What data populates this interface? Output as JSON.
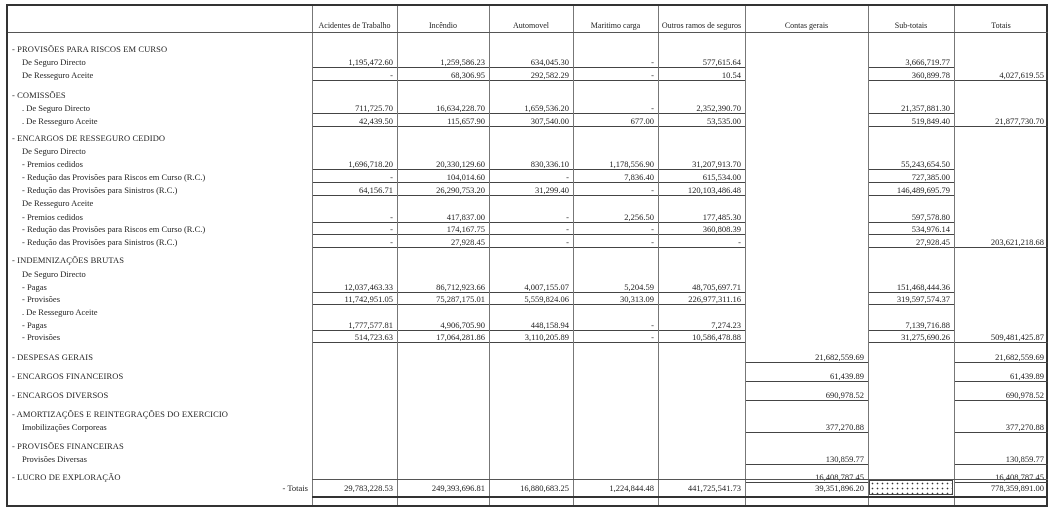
{
  "columns": [
    "Acidentes de Trabalho",
    "Incêndio",
    "Automovel",
    "Maritimo carga",
    "Outros ramos de seguros",
    "Contas gerais",
    "Sub-totais",
    "Totais"
  ],
  "rows": [
    {
      "label": "- PROVISÕES PARA RISCOS EM CURSO",
      "section": true
    },
    {
      "label": "De Seguro Directo",
      "values": [
        "1,195,472.60",
        "1,259,586.23",
        "634,045.30",
        "-",
        "577,615.64",
        null,
        "3,666,719.77",
        null
      ]
    },
    {
      "label": "De Resseguro Aceite",
      "values": [
        "-",
        "68,306.95",
        "292,582.29",
        "-",
        "10.54",
        null,
        "360,899.78",
        "4,027,619.55"
      ]
    },
    {
      "label": "- COMISSÕES",
      "section": true
    },
    {
      "label": ". De Seguro Directo",
      "values": [
        "711,725.70",
        "16,634,228.70",
        "1,659,536.20",
        "-",
        "2,352,390.70",
        null,
        "21,357,881.30",
        null
      ]
    },
    {
      "label": ". De Resseguro Aceite",
      "values": [
        "42,439.50",
        "115,657.90",
        "307,540.00",
        "677.00",
        "53,535.00",
        null,
        "519,849.40",
        "21,877,730.70"
      ]
    },
    {
      "label": "- ENCARGOS DE RESSEGURO CEDIDO",
      "section": true
    },
    {
      "label": "De Seguro Directo",
      "sub": true
    },
    {
      "label": "- Premios cedidos",
      "values": [
        "1,696,718.20",
        "20,330,129.60",
        "830,336.10",
        "1,178,556.90",
        "31,207,913.70",
        null,
        "55,243,654.50",
        null
      ]
    },
    {
      "label": "- Redução das Provisões para Riscos em Curso (R.C.)",
      "values": [
        "-",
        "104,014.60",
        "-",
        "7,836.40",
        "615,534.00",
        null,
        "727,385.00",
        null
      ]
    },
    {
      "label": "- Redução das Provisões para Sinistros (R.C.)",
      "values": [
        "64,156.71",
        "26,290,753.20",
        "31,299.40",
        "-",
        "120,103,486.48",
        null,
        "146,489,695.79",
        null
      ]
    },
    {
      "label": "De Resseguro Aceite",
      "sub": true
    },
    {
      "label": "- Premios cedidos",
      "values": [
        "-",
        "417,837.00",
        "-",
        "2,256.50",
        "177,485.30",
        null,
        "597,578.80",
        null
      ]
    },
    {
      "label": "- Redução das Provisões para Riscos em Curso (R.C.)",
      "values": [
        "-",
        "174,167.75",
        "-",
        "-",
        "360,808.39",
        null,
        "534,976.14",
        null
      ]
    },
    {
      "label": "- Redução das Provisões para Sinistros (R.C.)",
      "values": [
        "-",
        "27,928.45",
        "-",
        "-",
        "-",
        null,
        "27,928.45",
        "203,621,218.68"
      ]
    },
    {
      "label": "- INDEMNIZAÇÕES BRUTAS",
      "section": true
    },
    {
      "label": "De Seguro Directo",
      "sub": true
    },
    {
      "label": "- Pagas",
      "values": [
        "12,037,463.33",
        "86,712,923.66",
        "4,007,155.07",
        "5,204.59",
        "48,705,697.71",
        null,
        "151,468,444.36",
        null
      ]
    },
    {
      "label": "- Provisões",
      "values": [
        "11,742,951.05",
        "75,287,175.01",
        "5,559,824.06",
        "30,313.09",
        "226,977,311.16",
        null,
        "319,597,574.37",
        null
      ]
    },
    {
      "label": ". De Resseguro Aceite",
      "sub": true
    },
    {
      "label": "- Pagas",
      "values": [
        "1,777,577.81",
        "4,906,705.90",
        "448,158.94",
        "-",
        "7,274.23",
        null,
        "7,139,716.88",
        null
      ]
    },
    {
      "label": "- Provisões",
      "values": [
        "514,723.63",
        "17,064,281.86",
        "3,110,205.89",
        "-",
        "10,586,478.88",
        null,
        "31,275,690.26",
        "509,481,425.87"
      ]
    },
    {
      "label": "- DESPESAS GERAIS",
      "section": true,
      "values": [
        null,
        null,
        null,
        null,
        null,
        "21,682,559.69",
        null,
        "21,682,559.69"
      ]
    },
    {
      "label": "- ENCARGOS FINANCEIROS",
      "section": true,
      "values": [
        null,
        null,
        null,
        null,
        null,
        "61,439.89",
        null,
        "61,439.89"
      ]
    },
    {
      "label": "- ENCARGOS DIVERSOS",
      "section": true,
      "values": [
        null,
        null,
        null,
        null,
        null,
        "690,978.52",
        null,
        "690,978.52"
      ]
    },
    {
      "label": "- AMORTIZAÇÕES E REINTEGRAÇÕES DO EXERCICIO",
      "section": true
    },
    {
      "label": "Imobilizações Corporeas",
      "values": [
        null,
        null,
        null,
        null,
        null,
        "377,270.88",
        null,
        "377,270.88"
      ]
    },
    {
      "label": "- PROVISÕES FINANCEIRAS",
      "section": true
    },
    {
      "label": "Provisões Diversas",
      "values": [
        null,
        null,
        null,
        null,
        null,
        "130,859.77",
        null,
        "130,859.77"
      ]
    },
    {
      "label": "- LUCRO DE EXPLORAÇÃO",
      "section": true,
      "values": [
        null,
        null,
        null,
        null,
        null,
        "16,408,787.45",
        null,
        "16,408,787.45"
      ]
    }
  ],
  "totals": {
    "label": "- Totais",
    "values": [
      "29,783,228.53",
      "249,393,696.81",
      "16,880,683.25",
      "1,224,844.48",
      "441,725,541.73",
      "39,351,896.20",
      null,
      "778,359,891.00"
    ]
  }
}
